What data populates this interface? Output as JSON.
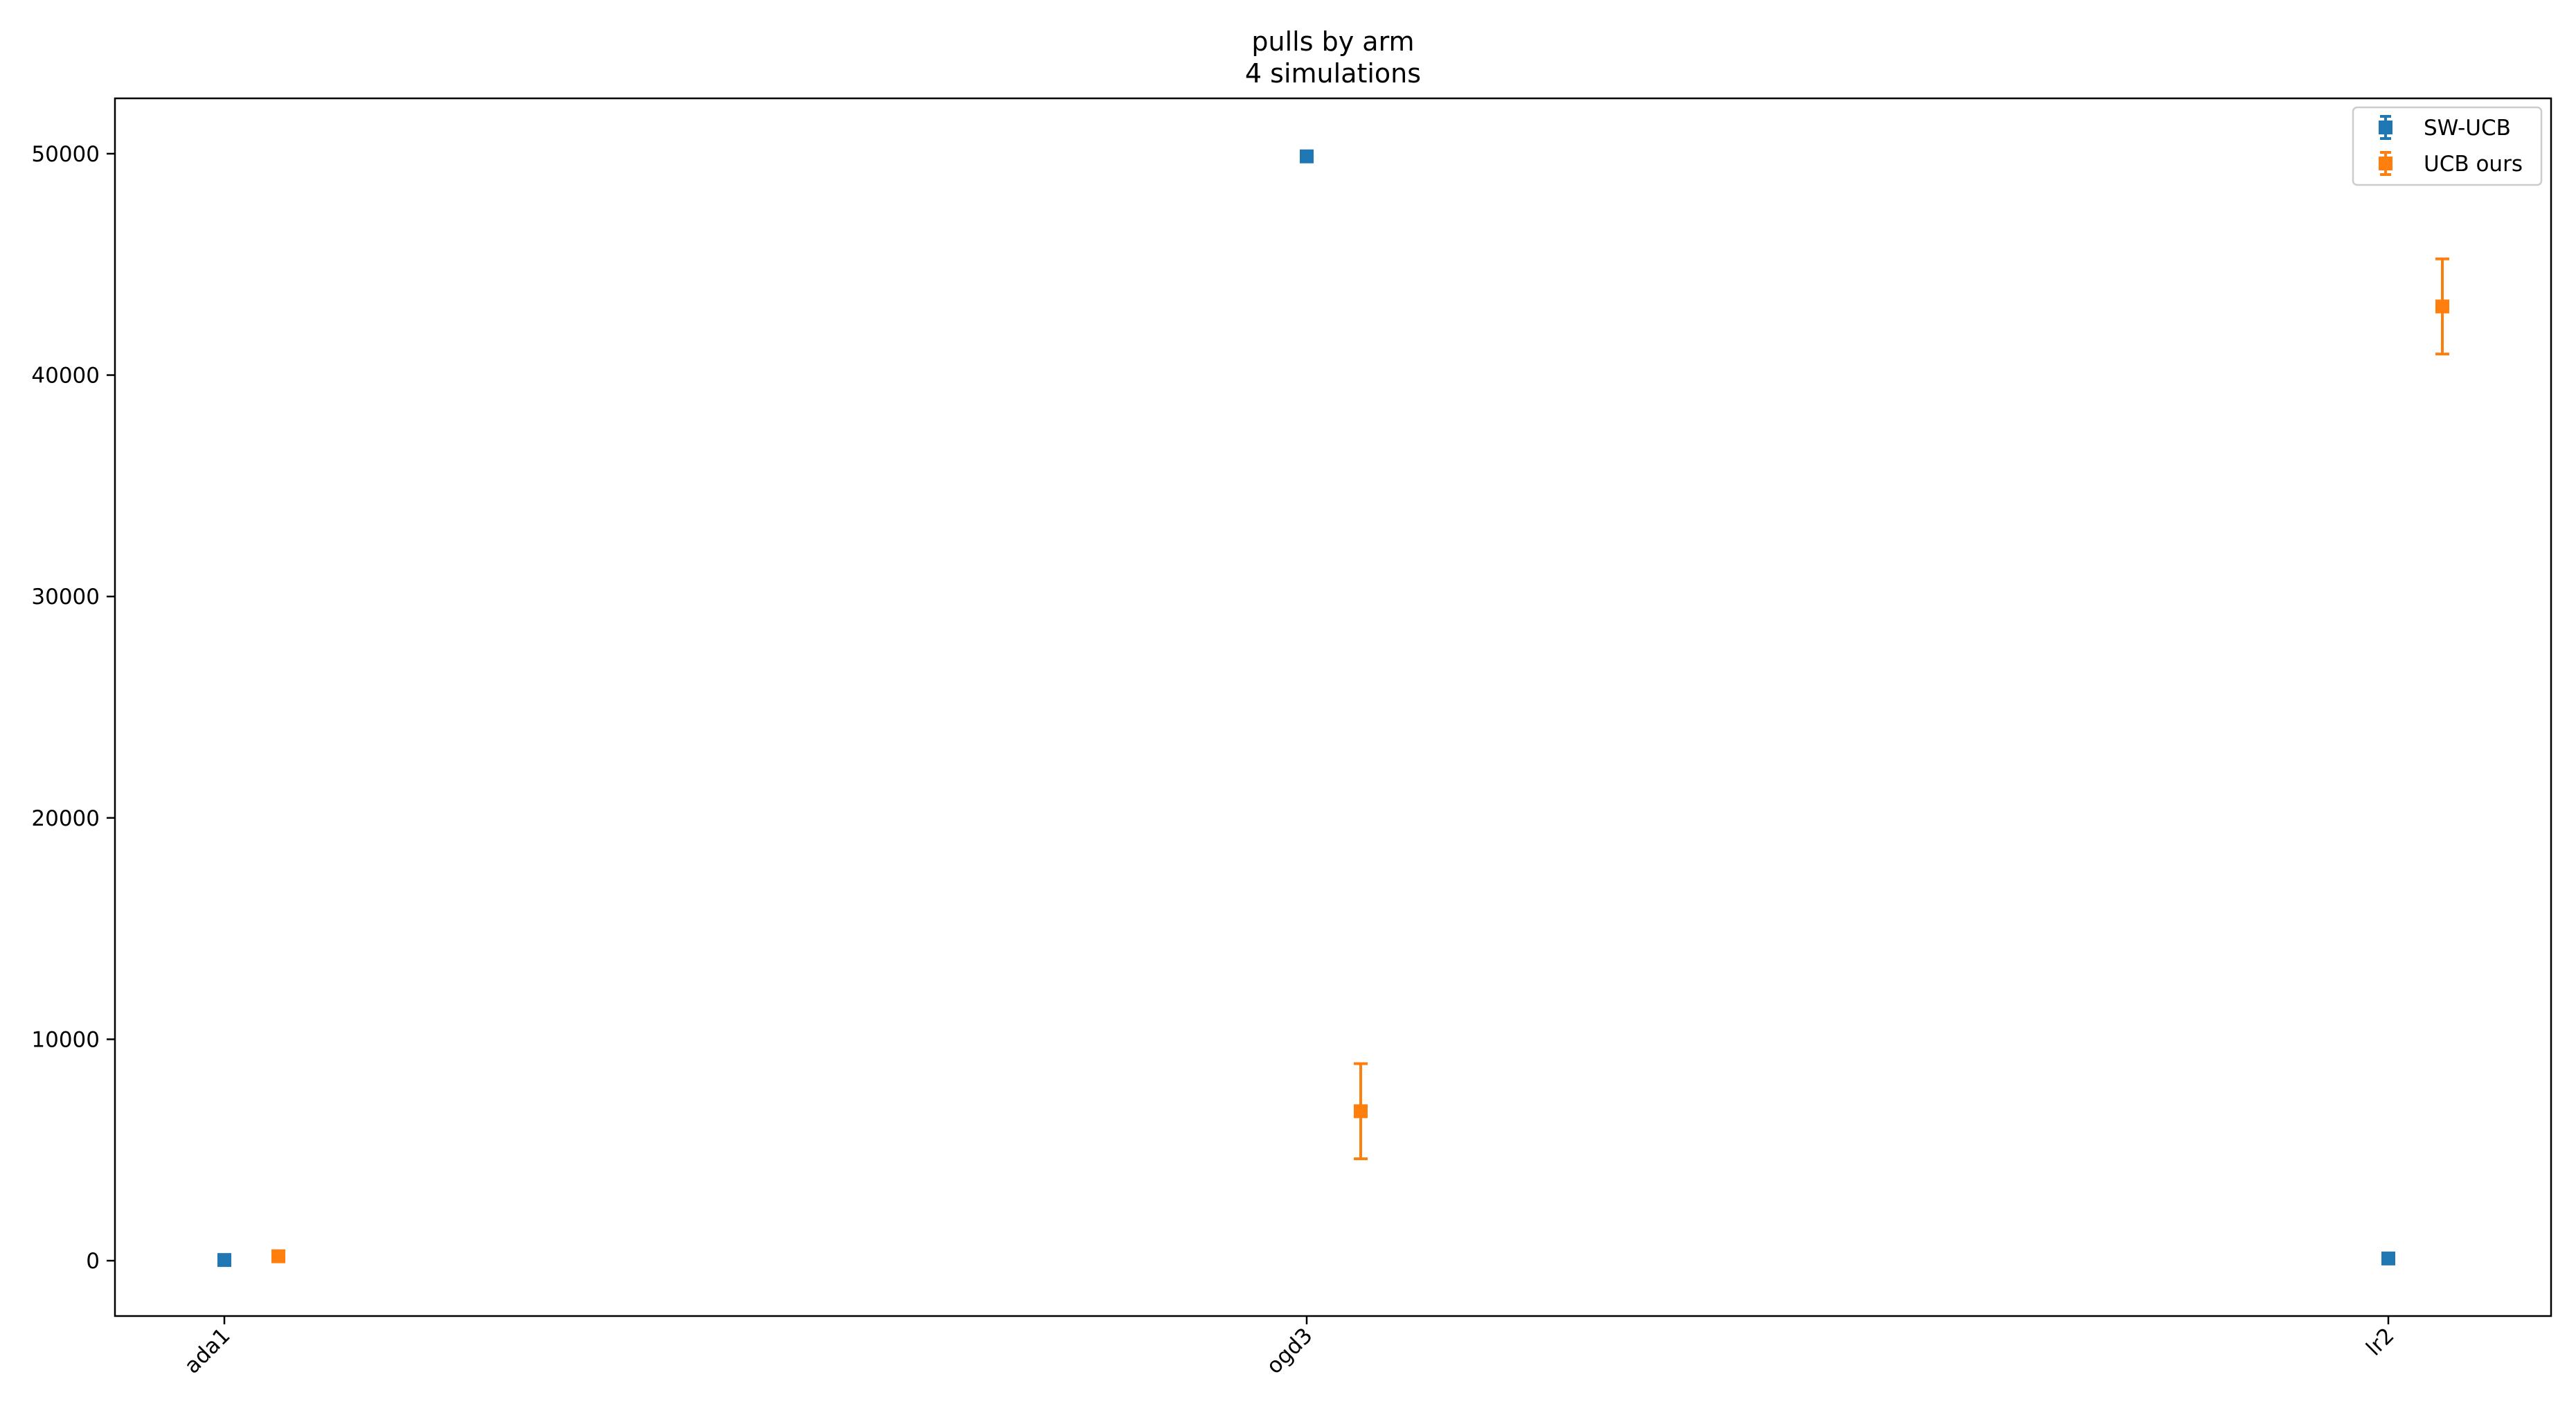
{
  "chart_data": {
    "type": "scatter",
    "title": "pulls by arm",
    "subtitle": "4 simulations",
    "xlabel": "",
    "ylabel": "",
    "categories": [
      "ada1",
      "ogd3",
      "lr2"
    ],
    "ylim": [
      -2500,
      52500
    ],
    "yticks": [
      0,
      10000,
      20000,
      30000,
      40000,
      50000
    ],
    "ytick_labels": [
      "0",
      "10000",
      "20000",
      "30000",
      "40000",
      "50000"
    ],
    "grid": false,
    "legend_position": "top-right",
    "series": [
      {
        "name": "SW-UCB",
        "color": "#1f77b4",
        "marker": "square",
        "values": [
          30,
          49880,
          100
        ],
        "errors": [
          0,
          0,
          0
        ]
      },
      {
        "name": "UCB ours",
        "color": "#ff7f0e",
        "marker": "square",
        "values": [
          200,
          6750,
          43100
        ],
        "errors": [
          0,
          2150,
          2150
        ]
      }
    ]
  }
}
